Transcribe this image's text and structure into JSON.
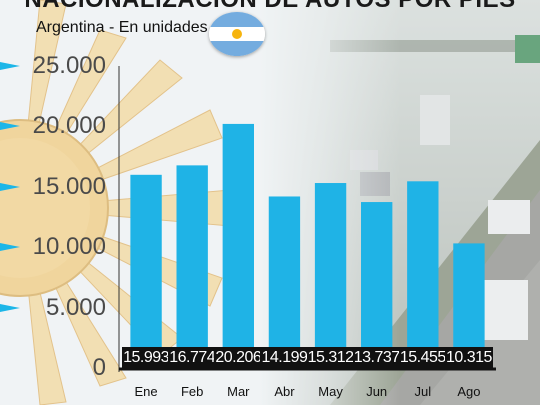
{
  "header": {
    "title": "NACIONALIZACIÓN DE AUTOS POR PIES",
    "subtitle": "Argentina - En unidades",
    "flag_icon": "argentina-flag-icon"
  },
  "colors": {
    "bar": "#1fb3e6",
    "value_label_bg": "#111111",
    "arrow": "#1cb6e8"
  },
  "chart_data": {
    "type": "bar",
    "title": "NACIONALIZACIÓN DE AUTOS POR PIES",
    "subtitle": "Argentina - En unidades",
    "xlabel": "",
    "ylabel": "",
    "categories": [
      "Ene",
      "Feb",
      "Mar",
      "Abr",
      "May",
      "Jun",
      "Jul",
      "Ago"
    ],
    "values": [
      15993,
      16774,
      20206,
      14199,
      15312,
      13737,
      15455,
      10315
    ],
    "value_labels": [
      "15.993",
      "16.774",
      "20.206",
      "14.199",
      "15.312",
      "13.737",
      "15.455",
      "10.315"
    ],
    "yticks": [
      0,
      5000,
      10000,
      15000,
      20000,
      25000
    ],
    "ytick_labels": [
      "0",
      "5.000",
      "10.000",
      "15.000",
      "20.000",
      "25.000"
    ],
    "ylim": [
      0,
      25000
    ],
    "grid": false
  }
}
